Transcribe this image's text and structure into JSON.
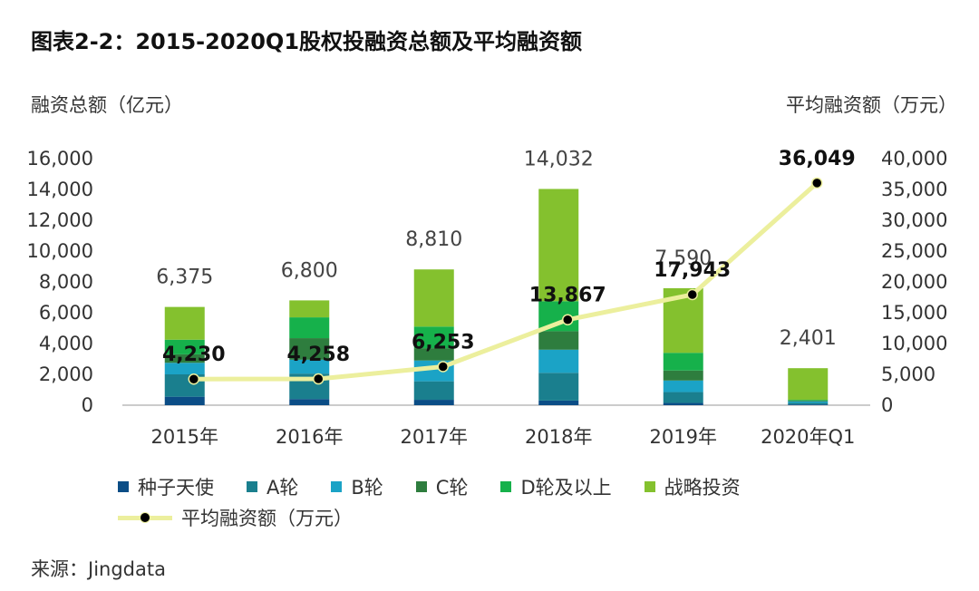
{
  "title": "图表2-2：2015-2020Q1股权投融资总额及平均融资额",
  "left_axis_title": "融资总额（亿元）",
  "right_axis_title": "平均融资额（万元）",
  "source": "来源：Jingdata",
  "colors": {
    "seed": "#0b4d86",
    "a_round": "#1a7f8e",
    "b_round": "#1ba3c6",
    "c_round": "#2e7d3e",
    "d_round": "#16b14b",
    "strategic": "#84c12e",
    "avg_line": "#ecef9d",
    "avg_marker": "#000000"
  },
  "legend": {
    "seed": "种子天使",
    "a_round": "A轮",
    "b_round": "B轮",
    "c_round": "C轮",
    "d_round": "D轮及以上",
    "strategic": "战略投资",
    "avg": "平均融资额（万元）"
  },
  "chart_data": {
    "type": "bar",
    "stacked": true,
    "categories": [
      "2015年",
      "2016年",
      "2017年",
      "2018年",
      "2019年",
      "2020年Q1"
    ],
    "series": [
      {
        "key": "seed",
        "name": "种子天使",
        "values": [
          550,
          400,
          350,
          300,
          150,
          50
        ]
      },
      {
        "key": "a_round",
        "name": "A轮",
        "values": [
          1450,
          1650,
          1200,
          1800,
          700,
          100
        ]
      },
      {
        "key": "b_round",
        "name": "B轮",
        "values": [
          750,
          900,
          1350,
          1500,
          750,
          100
        ]
      },
      {
        "key": "c_round",
        "name": "C轮",
        "values": [
          550,
          1400,
          800,
          1200,
          650,
          50
        ]
      },
      {
        "key": "d_round",
        "name": "D轮及以上",
        "values": [
          950,
          1350,
          1400,
          1950,
          1150,
          50
        ]
      },
      {
        "key": "strategic",
        "name": "战略投资",
        "values": [
          2125,
          1100,
          3710,
          7282,
          4190,
          2051
        ]
      }
    ],
    "totals": [
      "6,375",
      "6,800",
      "8,810",
      "14,032",
      "7,590",
      "2,401"
    ],
    "totals_values": [
      6375,
      6800,
      8810,
      14032,
      7590,
      2401
    ],
    "line": {
      "name": "平均融资额（万元）",
      "values": [
        4230,
        4258,
        6253,
        13867,
        17943,
        36049
      ],
      "labels": [
        "4,230",
        "4,258",
        "6,253",
        "13,867",
        "17,943",
        "36,049"
      ]
    },
    "y_left": {
      "min": 0,
      "max": 16000,
      "ticks": [
        "0",
        "2,000",
        "4,000",
        "6,000",
        "8,000",
        "10,000",
        "12,000",
        "14,000",
        "16,000"
      ]
    },
    "y_right": {
      "min": 0,
      "max": 40000,
      "ticks": [
        "0",
        "5,000",
        "10,000",
        "15,000",
        "20,000",
        "25,000",
        "30,000",
        "35,000",
        "40,000"
      ]
    },
    "grid": false,
    "legend_position": "bottom"
  }
}
